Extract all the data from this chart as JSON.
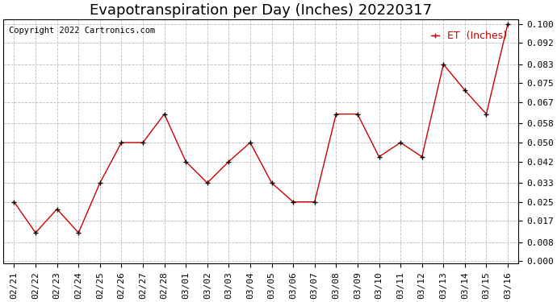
{
  "title": "Evapotranspiration per Day (Inches) 20220317",
  "copyright_text": "Copyright 2022 Cartronics.com",
  "legend_label": "ET  (Inches)",
  "dates": [
    "02/21",
    "02/22",
    "02/23",
    "02/24",
    "02/25",
    "02/26",
    "02/27",
    "02/28",
    "03/01",
    "03/02",
    "03/03",
    "03/04",
    "03/05",
    "03/06",
    "03/07",
    "03/08",
    "03/09",
    "03/10",
    "03/11",
    "03/12",
    "03/13",
    "03/14",
    "03/15",
    "03/16"
  ],
  "values": [
    0.025,
    0.012,
    0.022,
    0.012,
    0.033,
    0.05,
    0.05,
    0.062,
    0.042,
    0.033,
    0.042,
    0.05,
    0.033,
    0.025,
    0.025,
    0.062,
    0.062,
    0.044,
    0.05,
    0.044,
    0.083,
    0.072,
    0.062,
    0.1
  ],
  "line_color": "#cc0000",
  "marker_color": "#000000",
  "background_color": "#ffffff",
  "grid_color": "#bbbbbb",
  "ylim": [
    -0.001,
    0.102
  ],
  "yticks": [
    0.0,
    0.008,
    0.017,
    0.025,
    0.033,
    0.042,
    0.05,
    0.058,
    0.067,
    0.075,
    0.083,
    0.092,
    0.1
  ],
  "title_fontsize": 13,
  "axis_fontsize": 8,
  "legend_fontsize": 9,
  "copyright_fontsize": 7.5
}
